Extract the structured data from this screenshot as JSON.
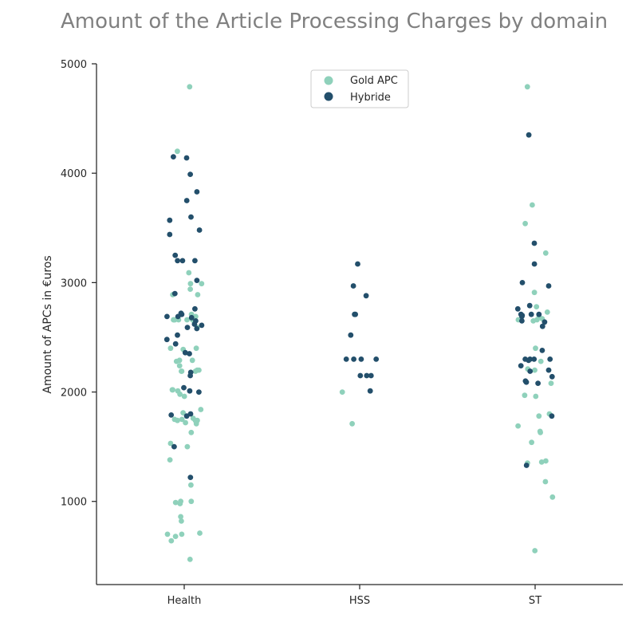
{
  "chart_data": {
    "type": "scatter",
    "title": "Amount of the Article Processing Charges by domain",
    "xlabel": "",
    "ylabel": "Amount of APCs in €uros",
    "categories": [
      "Health",
      "HSS",
      "ST"
    ],
    "ylim": [
      240,
      5000
    ],
    "yticks": [
      1000,
      2000,
      3000,
      4000,
      5000
    ],
    "grid": false,
    "legend_position": "top-center",
    "series": [
      {
        "name": "Gold APC",
        "color": "#8fd1bb",
        "points": [
          {
            "x": "Health",
            "y": 4790
          },
          {
            "x": "Health",
            "y": 4200
          },
          {
            "x": "Health",
            "y": 3090
          },
          {
            "x": "Health",
            "y": 2990
          },
          {
            "x": "Health",
            "y": 2990
          },
          {
            "x": "Health",
            "y": 2940
          },
          {
            "x": "Health",
            "y": 2890
          },
          {
            "x": "Health",
            "y": 2890
          },
          {
            "x": "Health",
            "y": 2710
          },
          {
            "x": "Health",
            "y": 2690
          },
          {
            "x": "Health",
            "y": 2660
          },
          {
            "x": "Health",
            "y": 2660
          },
          {
            "x": "Health",
            "y": 2660
          },
          {
            "x": "Health",
            "y": 2660
          },
          {
            "x": "Health",
            "y": 2660
          },
          {
            "x": "Health",
            "y": 2660
          },
          {
            "x": "Health",
            "y": 2660
          },
          {
            "x": "Health",
            "y": 2640
          },
          {
            "x": "Health",
            "y": 2590
          },
          {
            "x": "Health",
            "y": 2400
          },
          {
            "x": "Health",
            "y": 2400
          },
          {
            "x": "Health",
            "y": 2390
          },
          {
            "x": "Health",
            "y": 2290
          },
          {
            "x": "Health",
            "y": 2290
          },
          {
            "x": "Health",
            "y": 2280
          },
          {
            "x": "Health",
            "y": 2240
          },
          {
            "x": "Health",
            "y": 2200
          },
          {
            "x": "Health",
            "y": 2200
          },
          {
            "x": "Health",
            "y": 2190
          },
          {
            "x": "Health",
            "y": 2190
          },
          {
            "x": "Health",
            "y": 2190
          },
          {
            "x": "Health",
            "y": 2020
          },
          {
            "x": "Health",
            "y": 2020
          },
          {
            "x": "Health",
            "y": 2010
          },
          {
            "x": "Health",
            "y": 1980
          },
          {
            "x": "Health",
            "y": 1960
          },
          {
            "x": "Health",
            "y": 1840
          },
          {
            "x": "Health",
            "y": 1810
          },
          {
            "x": "Health",
            "y": 1760
          },
          {
            "x": "Health",
            "y": 1750
          },
          {
            "x": "Health",
            "y": 1750
          },
          {
            "x": "Health",
            "y": 1740
          },
          {
            "x": "Health",
            "y": 1740
          },
          {
            "x": "Health",
            "y": 1740
          },
          {
            "x": "Health",
            "y": 1720
          },
          {
            "x": "Health",
            "y": 1710
          },
          {
            "x": "Health",
            "y": 1630
          },
          {
            "x": "Health",
            "y": 1530
          },
          {
            "x": "Health",
            "y": 1500
          },
          {
            "x": "Health",
            "y": 1380
          },
          {
            "x": "Health",
            "y": 1150
          },
          {
            "x": "Health",
            "y": 1000
          },
          {
            "x": "Health",
            "y": 1000
          },
          {
            "x": "Health",
            "y": 990
          },
          {
            "x": "Health",
            "y": 980
          },
          {
            "x": "Health",
            "y": 860
          },
          {
            "x": "Health",
            "y": 820
          },
          {
            "x": "Health",
            "y": 710
          },
          {
            "x": "Health",
            "y": 700
          },
          {
            "x": "Health",
            "y": 700
          },
          {
            "x": "Health",
            "y": 680
          },
          {
            "x": "Health",
            "y": 640
          },
          {
            "x": "Health",
            "y": 470
          },
          {
            "x": "HSS",
            "y": 2000
          },
          {
            "x": "HSS",
            "y": 1710
          },
          {
            "x": "ST",
            "y": 4790
          },
          {
            "x": "ST",
            "y": 3710
          },
          {
            "x": "ST",
            "y": 3540
          },
          {
            "x": "ST",
            "y": 3270
          },
          {
            "x": "ST",
            "y": 2910
          },
          {
            "x": "ST",
            "y": 2780
          },
          {
            "x": "ST",
            "y": 2730
          },
          {
            "x": "ST",
            "y": 2690
          },
          {
            "x": "ST",
            "y": 2670
          },
          {
            "x": "ST",
            "y": 2660
          },
          {
            "x": "ST",
            "y": 2660
          },
          {
            "x": "ST",
            "y": 2650
          },
          {
            "x": "ST",
            "y": 2400
          },
          {
            "x": "ST",
            "y": 2280
          },
          {
            "x": "ST",
            "y": 2210
          },
          {
            "x": "ST",
            "y": 2200
          },
          {
            "x": "ST",
            "y": 2080
          },
          {
            "x": "ST",
            "y": 1970
          },
          {
            "x": "ST",
            "y": 1960
          },
          {
            "x": "ST",
            "y": 1800
          },
          {
            "x": "ST",
            "y": 1780
          },
          {
            "x": "ST",
            "y": 1690
          },
          {
            "x": "ST",
            "y": 1640
          },
          {
            "x": "ST",
            "y": 1630
          },
          {
            "x": "ST",
            "y": 1540
          },
          {
            "x": "ST",
            "y": 1370
          },
          {
            "x": "ST",
            "y": 1360
          },
          {
            "x": "ST",
            "y": 1350
          },
          {
            "x": "ST",
            "y": 1180
          },
          {
            "x": "ST",
            "y": 1040
          },
          {
            "x": "ST",
            "y": 550
          }
        ]
      },
      {
        "name": "Hybride",
        "color": "#234f6b",
        "points": [
          {
            "x": "Health",
            "y": 4150
          },
          {
            "x": "Health",
            "y": 4140
          },
          {
            "x": "Health",
            "y": 3990
          },
          {
            "x": "Health",
            "y": 3830
          },
          {
            "x": "Health",
            "y": 3750
          },
          {
            "x": "Health",
            "y": 3600
          },
          {
            "x": "Health",
            "y": 3570
          },
          {
            "x": "Health",
            "y": 3480
          },
          {
            "x": "Health",
            "y": 3440
          },
          {
            "x": "Health",
            "y": 3250
          },
          {
            "x": "Health",
            "y": 3200
          },
          {
            "x": "Health",
            "y": 3200
          },
          {
            "x": "Health",
            "y": 3200
          },
          {
            "x": "Health",
            "y": 3020
          },
          {
            "x": "Health",
            "y": 2900
          },
          {
            "x": "Health",
            "y": 2760
          },
          {
            "x": "Health",
            "y": 2720
          },
          {
            "x": "Health",
            "y": 2710
          },
          {
            "x": "Health",
            "y": 2690
          },
          {
            "x": "Health",
            "y": 2690
          },
          {
            "x": "Health",
            "y": 2680
          },
          {
            "x": "Health",
            "y": 2650
          },
          {
            "x": "Health",
            "y": 2620
          },
          {
            "x": "Health",
            "y": 2610
          },
          {
            "x": "Health",
            "y": 2590
          },
          {
            "x": "Health",
            "y": 2580
          },
          {
            "x": "Health",
            "y": 2520
          },
          {
            "x": "Health",
            "y": 2480
          },
          {
            "x": "Health",
            "y": 2440
          },
          {
            "x": "Health",
            "y": 2360
          },
          {
            "x": "Health",
            "y": 2350
          },
          {
            "x": "Health",
            "y": 2180
          },
          {
            "x": "Health",
            "y": 2150
          },
          {
            "x": "Health",
            "y": 2040
          },
          {
            "x": "Health",
            "y": 2010
          },
          {
            "x": "Health",
            "y": 2000
          },
          {
            "x": "Health",
            "y": 1800
          },
          {
            "x": "Health",
            "y": 1790
          },
          {
            "x": "Health",
            "y": 1780
          },
          {
            "x": "Health",
            "y": 1500
          },
          {
            "x": "Health",
            "y": 1220
          },
          {
            "x": "HSS",
            "y": 3170
          },
          {
            "x": "HSS",
            "y": 2970
          },
          {
            "x": "HSS",
            "y": 2880
          },
          {
            "x": "HSS",
            "y": 2710
          },
          {
            "x": "HSS",
            "y": 2710
          },
          {
            "x": "HSS",
            "y": 2520
          },
          {
            "x": "HSS",
            "y": 2300
          },
          {
            "x": "HSS",
            "y": 2300
          },
          {
            "x": "HSS",
            "y": 2300
          },
          {
            "x": "HSS",
            "y": 2300
          },
          {
            "x": "HSS",
            "y": 2150
          },
          {
            "x": "HSS",
            "y": 2150
          },
          {
            "x": "HSS",
            "y": 2150
          },
          {
            "x": "HSS",
            "y": 2010
          },
          {
            "x": "ST",
            "y": 4350
          },
          {
            "x": "ST",
            "y": 3360
          },
          {
            "x": "ST",
            "y": 3170
          },
          {
            "x": "ST",
            "y": 3000
          },
          {
            "x": "ST",
            "y": 2970
          },
          {
            "x": "ST",
            "y": 2790
          },
          {
            "x": "ST",
            "y": 2760
          },
          {
            "x": "ST",
            "y": 2710
          },
          {
            "x": "ST",
            "y": 2710
          },
          {
            "x": "ST",
            "y": 2710
          },
          {
            "x": "ST",
            "y": 2700
          },
          {
            "x": "ST",
            "y": 2690
          },
          {
            "x": "ST",
            "y": 2650
          },
          {
            "x": "ST",
            "y": 2640
          },
          {
            "x": "ST",
            "y": 2600
          },
          {
            "x": "ST",
            "y": 2380
          },
          {
            "x": "ST",
            "y": 2300
          },
          {
            "x": "ST",
            "y": 2300
          },
          {
            "x": "ST",
            "y": 2300
          },
          {
            "x": "ST",
            "y": 2300
          },
          {
            "x": "ST",
            "y": 2290
          },
          {
            "x": "ST",
            "y": 2240
          },
          {
            "x": "ST",
            "y": 2200
          },
          {
            "x": "ST",
            "y": 2190
          },
          {
            "x": "ST",
            "y": 2140
          },
          {
            "x": "ST",
            "y": 2100
          },
          {
            "x": "ST",
            "y": 2090
          },
          {
            "x": "ST",
            "y": 2080
          },
          {
            "x": "ST",
            "y": 1780
          },
          {
            "x": "ST",
            "y": 1330
          }
        ]
      }
    ]
  }
}
